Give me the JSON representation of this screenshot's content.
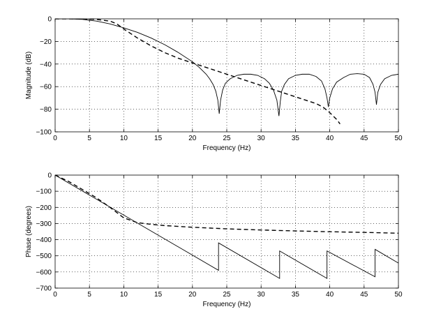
{
  "chart_data": [
    {
      "type": "line",
      "xlabel": "Frequency (Hz)",
      "ylabel": "Magnitude (dB)",
      "xlim": [
        0,
        50
      ],
      "ylim": [
        -100,
        0
      ],
      "xticks": [
        "0",
        "5",
        "10",
        "15",
        "20",
        "25",
        "30",
        "35",
        "40",
        "45",
        "50"
      ],
      "yticks": [
        "0",
        "−20",
        "−40",
        "−60",
        "−80",
        "−100"
      ],
      "grid": true,
      "series": [
        {
          "style": "solid",
          "x": [
            0,
            2,
            4,
            6,
            8,
            10,
            12,
            14,
            16,
            18,
            20,
            21,
            22,
            22.5,
            23,
            23.4,
            23.7,
            23.9,
            24.1,
            24.4,
            24.8,
            25.5,
            26.5,
            27.5,
            28.5,
            29.5,
            30.5,
            31.2,
            31.8,
            32.3,
            32.6,
            32.8,
            33.0,
            33.4,
            34.0,
            35.0,
            36.0,
            37.0,
            38.0,
            38.8,
            39.3,
            39.6,
            39.8,
            40.0,
            40.4,
            41.0,
            42.0,
            43.0,
            44.0,
            45.0,
            45.8,
            46.3,
            46.6,
            46.8,
            47.0,
            47.4,
            48.0,
            49.0,
            50.0
          ],
          "y": [
            0,
            0,
            -0.5,
            -2,
            -4.5,
            -8,
            -12,
            -17,
            -23,
            -30,
            -38,
            -43,
            -49,
            -53,
            -58,
            -64,
            -72,
            -84,
            -72,
            -63,
            -57,
            -53,
            -50,
            -49,
            -49,
            -50,
            -53,
            -57,
            -63,
            -72,
            -86,
            -73,
            -64,
            -58,
            -53,
            -50,
            -49,
            -49,
            -51,
            -55,
            -62,
            -70,
            -78,
            -70,
            -62,
            -56,
            -52,
            -49,
            -48.5,
            -49,
            -52,
            -58,
            -65,
            -76,
            -65,
            -58,
            -53,
            -50,
            -49
          ]
        },
        {
          "style": "dashed",
          "x": [
            0,
            2,
            4,
            6,
            8,
            9,
            10,
            11,
            12,
            14,
            16,
            18,
            20,
            22,
            24,
            26,
            28,
            30,
            32,
            34,
            36,
            38,
            39,
            40,
            41,
            41.5
          ],
          "y": [
            0,
            0,
            0,
            -0.5,
            -2,
            -4.5,
            -9,
            -13,
            -17,
            -24,
            -30,
            -35,
            -39,
            -43,
            -47,
            -51,
            -55,
            -59,
            -63,
            -67,
            -71,
            -75,
            -78,
            -83,
            -89,
            -93
          ]
        }
      ]
    },
    {
      "type": "line",
      "xlabel": "Frequency (Hz)",
      "ylabel": "Phase (degrees)",
      "xlim": [
        0,
        50
      ],
      "ylim": [
        -700,
        0
      ],
      "xticks": [
        "0",
        "5",
        "10",
        "15",
        "20",
        "25",
        "30",
        "35",
        "40",
        "45",
        "50"
      ],
      "yticks": [
        "0",
        "−100",
        "−200",
        "−300",
        "−400",
        "−500",
        "−600",
        "−700"
      ],
      "grid": true,
      "series": [
        {
          "style": "solid",
          "x": [
            0,
            23.8,
            23.8,
            32.7,
            32.7,
            39.6,
            39.6,
            46.6,
            46.6,
            50
          ],
          "y": [
            0,
            -590,
            -420,
            -640,
            -470,
            -640,
            -470,
            -630,
            -460,
            -545
          ]
        },
        {
          "style": "dashed",
          "x": [
            0,
            2,
            4,
            6,
            8,
            10,
            12,
            14,
            16,
            20,
            25,
            30,
            35,
            40,
            45,
            50
          ],
          "y": [
            0,
            -40,
            -90,
            -140,
            -200,
            -265,
            -295,
            -305,
            -313,
            -323,
            -333,
            -340,
            -346,
            -351,
            -355,
            -360
          ]
        }
      ]
    }
  ]
}
